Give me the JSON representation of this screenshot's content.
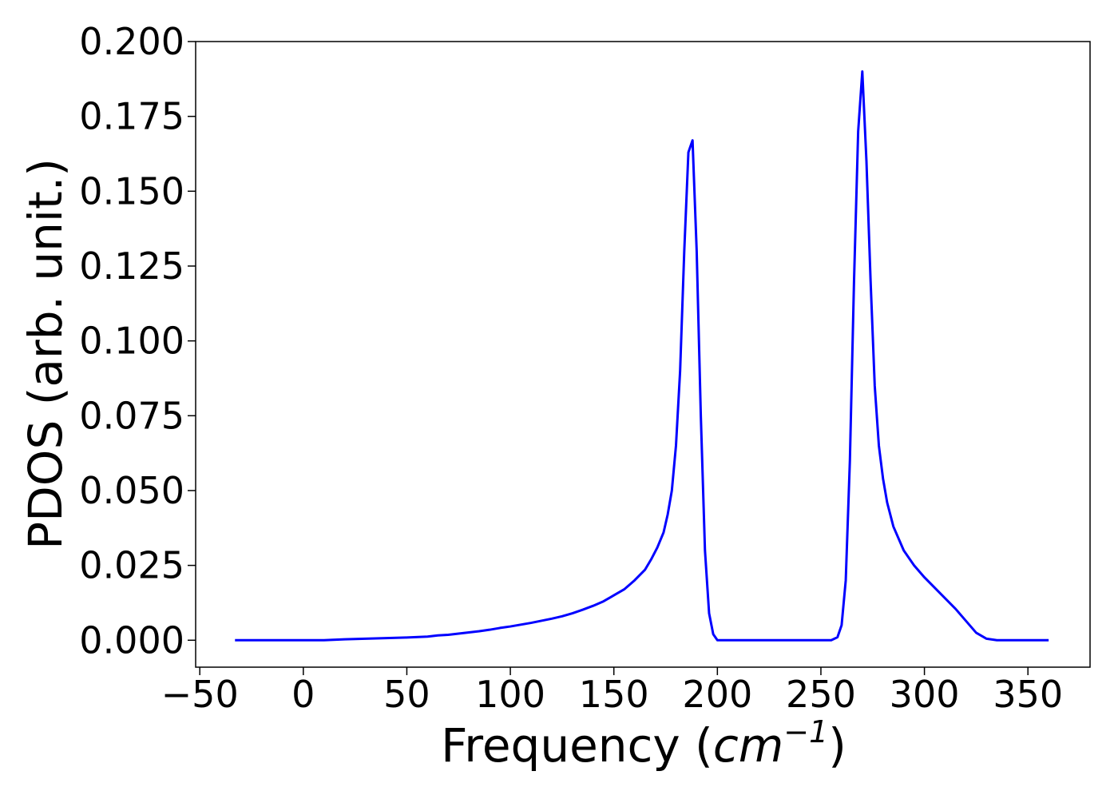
{
  "chart_data": {
    "type": "line",
    "title": "",
    "xlabel": "Frequency",
    "xlabel_unit_base": "cm",
    "xlabel_unit_exponent": "−1",
    "ylabel": "PDOS (arb. unit.)",
    "xlim": [
      -52,
      380
    ],
    "ylim": [
      -0.009,
      0.2
    ],
    "x_ticks": [
      -50,
      0,
      50,
      100,
      150,
      200,
      250,
      300,
      350
    ],
    "x_tick_labels": [
      "−50",
      "0",
      "50",
      "100",
      "150",
      "200",
      "250",
      "300",
      "350"
    ],
    "y_ticks": [
      0.0,
      0.025,
      0.05,
      0.075,
      0.1,
      0.125,
      0.15,
      0.175,
      0.2
    ],
    "y_tick_labels": [
      "0.000",
      "0.025",
      "0.050",
      "0.075",
      "0.100",
      "0.125",
      "0.150",
      "0.175",
      "0.200"
    ],
    "grid": false,
    "legend": "none",
    "series": [
      {
        "color": "#0000ff",
        "x": [
          -33,
          0,
          10,
          20,
          30,
          40,
          50,
          60,
          65,
          70,
          75,
          80,
          85,
          90,
          95,
          100,
          105,
          110,
          115,
          120,
          125,
          130,
          135,
          140,
          145,
          150,
          155,
          160,
          165,
          168,
          171,
          174,
          176,
          178,
          180,
          182,
          184,
          186,
          188,
          190,
          192,
          194,
          196,
          198,
          200,
          210,
          230,
          250,
          255,
          258,
          260,
          262,
          264,
          266,
          268,
          270,
          272,
          274,
          276,
          278,
          280,
          282,
          285,
          290,
          295,
          300,
          305,
          310,
          315,
          320,
          325,
          330,
          335,
          340,
          350,
          360
        ],
        "values": [
          0.0,
          0.0,
          0.0,
          0.0003,
          0.0005,
          0.0007,
          0.0009,
          0.0012,
          0.0016,
          0.0018,
          0.0022,
          0.0026,
          0.003,
          0.0035,
          0.0041,
          0.0046,
          0.0052,
          0.0058,
          0.0065,
          0.0072,
          0.008,
          0.009,
          0.0102,
          0.0115,
          0.013,
          0.015,
          0.017,
          0.02,
          0.0235,
          0.027,
          0.031,
          0.036,
          0.042,
          0.05,
          0.065,
          0.09,
          0.13,
          0.163,
          0.167,
          0.13,
          0.075,
          0.03,
          0.009,
          0.002,
          0.0,
          0.0,
          0.0,
          0.0,
          0.0,
          0.001,
          0.005,
          0.02,
          0.06,
          0.12,
          0.17,
          0.19,
          0.16,
          0.12,
          0.085,
          0.065,
          0.054,
          0.046,
          0.038,
          0.03,
          0.025,
          0.021,
          0.0175,
          0.014,
          0.0105,
          0.0065,
          0.0025,
          0.0005,
          0.0,
          0.0,
          0.0,
          0.0
        ]
      }
    ]
  }
}
